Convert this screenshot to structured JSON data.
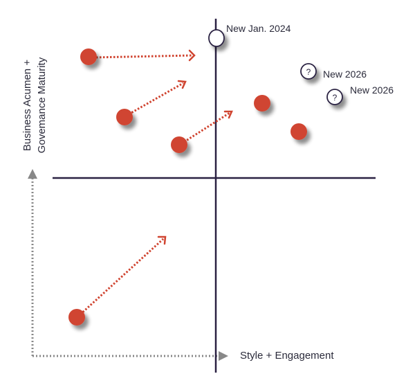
{
  "colors": {
    "dot": "#d04430",
    "axis": "#2a2142",
    "guide": "#888888"
  },
  "labels": {
    "y_axis_line1": "Business Acumen +",
    "y_axis_line2": "Govemance Maturity",
    "x_axis": "Style + Engagement",
    "new_jan": "New Jan. 2024",
    "new_2026_a": "New 2026",
    "new_2026_b": "New 2026",
    "question_mark": "?"
  }
}
